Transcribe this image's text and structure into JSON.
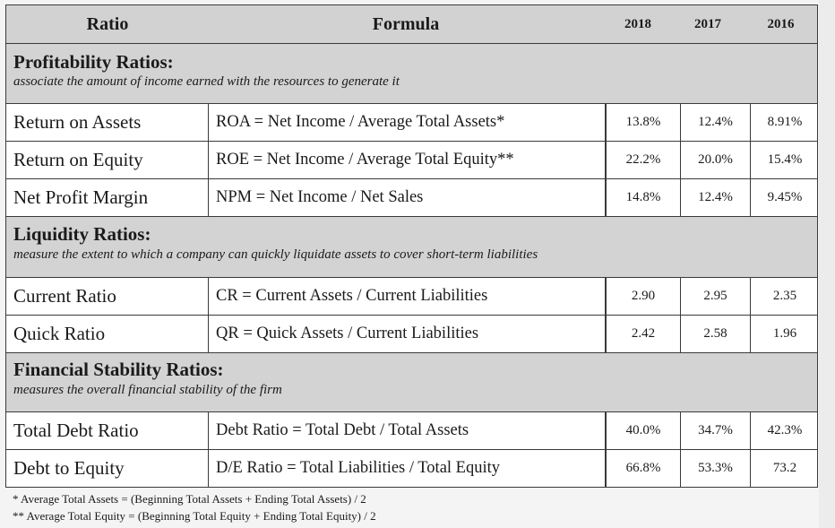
{
  "header": {
    "ratio": "Ratio",
    "formula": "Formula",
    "y2018": "2018",
    "y2017": "2017",
    "y2016": "2016"
  },
  "sections": [
    {
      "title": "Profitability Ratios:",
      "desc": "associate the amount of income earned with the resources to generate it",
      "rows": [
        {
          "name": "Return on Assets",
          "formula": "ROA = Net Income / Average Total Assets*",
          "y2018": "13.8%",
          "y2017": "12.4%",
          "y2016": "8.91%"
        },
        {
          "name": "Return on Equity",
          "formula": "ROE = Net Income / Average Total Equity**",
          "y2018": "22.2%",
          "y2017": "20.0%",
          "y2016": "15.4%"
        },
        {
          "name": "Net Profit Margin",
          "formula": "NPM = Net Income / Net Sales",
          "y2018": "14.8%",
          "y2017": "12.4%",
          "y2016": "9.45%"
        }
      ]
    },
    {
      "title": "Liquidity Ratios:",
      "desc": "measure the extent to which a company can quickly liquidate assets to cover short-term liabilities",
      "rows": [
        {
          "name": "Current Ratio",
          "formula": "CR = Current Assets / Current Liabilities",
          "y2018": "2.90",
          "y2017": "2.95",
          "y2016": "2.35"
        },
        {
          "name": "Quick Ratio",
          "formula": "QR = Quick Assets / Current Liabilities",
          "y2018": "2.42",
          "y2017": "2.58",
          "y2016": "1.96"
        }
      ]
    },
    {
      "title": "Financial Stability Ratios:",
      "desc": "measures the overall financial stability of the firm",
      "rows": [
        {
          "name": "Total Debt Ratio",
          "formula": "Debt Ratio = Total Debt / Total Assets",
          "y2018": "40.0%",
          "y2017": "34.7%",
          "y2016": "42.3%"
        },
        {
          "name": "Debt to Equity",
          "formula": "D/E Ratio = Total Liabilities / Total Equity",
          "y2018": "66.8%",
          "y2017": "53.3%",
          "y2016": "73.2"
        }
      ]
    }
  ],
  "footnotes": [
    "* Average Total Assets = (Beginning Total Assets + Ending Total Assets) / 2",
    "** Average Total Equity = (Beginning Total Equity + Ending Total Equity) / 2"
  ]
}
